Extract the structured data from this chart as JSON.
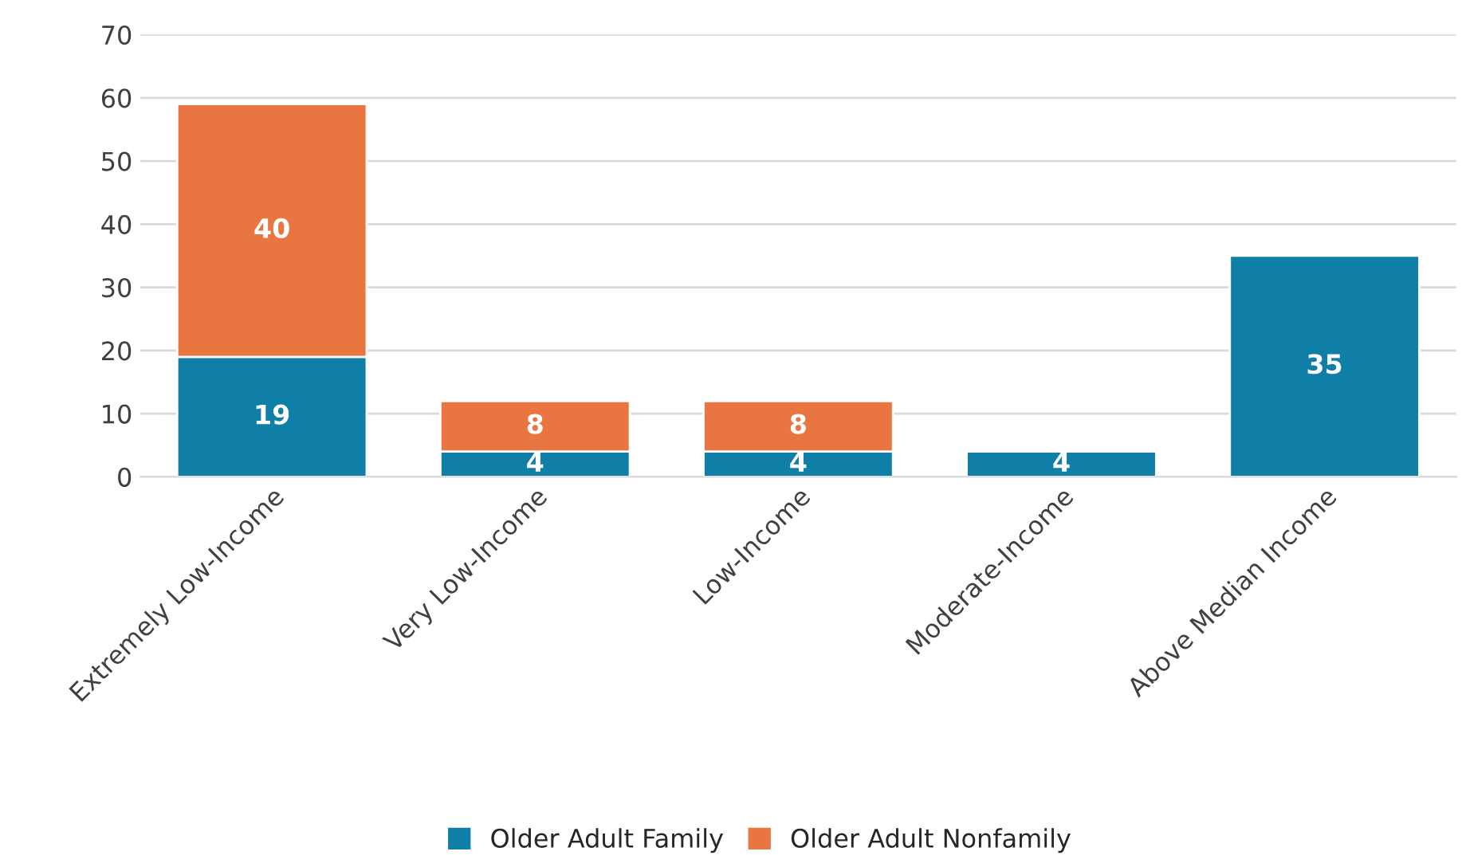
{
  "chart_data": {
    "type": "bar",
    "stacked": true,
    "categories": [
      "Extremely Low-Income",
      "Very Low-Income",
      "Low-Income",
      "Moderate-Income",
      "Above Median Income"
    ],
    "series": [
      {
        "name": "Older Adult Family",
        "color": "#0f7fa8",
        "values": [
          19,
          4,
          4,
          4,
          35
        ]
      },
      {
        "name": "Older Adult Nonfamily",
        "color": "#e97540",
        "values": [
          40,
          8,
          8,
          null,
          null
        ]
      }
    ],
    "ylim": [
      0,
      70
    ],
    "yticks": [
      0,
      10,
      20,
      30,
      40,
      50,
      60,
      70
    ],
    "grid": "y",
    "legend": "bottom",
    "data_labels": true
  }
}
